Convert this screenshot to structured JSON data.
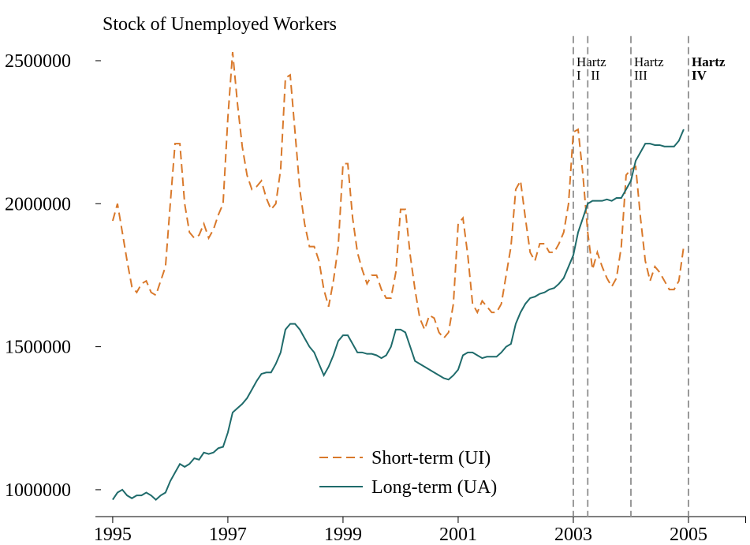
{
  "chart_data": {
    "type": "line",
    "title": "Stock of Unemployed Workers",
    "x": [
      1995,
      1995.083,
      1995.167,
      1995.25,
      1995.333,
      1995.417,
      1995.5,
      1995.583,
      1995.667,
      1995.75,
      1995.833,
      1995.917,
      1996,
      1996.083,
      1996.167,
      1996.25,
      1996.333,
      1996.417,
      1996.5,
      1996.583,
      1996.667,
      1996.75,
      1996.833,
      1996.917,
      1997,
      1997.083,
      1997.167,
      1997.25,
      1997.333,
      1997.417,
      1997.5,
      1997.583,
      1997.667,
      1997.75,
      1997.833,
      1997.917,
      1998,
      1998.083,
      1998.167,
      1998.25,
      1998.333,
      1998.417,
      1998.5,
      1998.583,
      1998.667,
      1998.75,
      1998.833,
      1998.917,
      1999,
      1999.083,
      1999.167,
      1999.25,
      1999.333,
      1999.417,
      1999.5,
      1999.583,
      1999.667,
      1999.75,
      1999.833,
      1999.917,
      2000,
      2000.083,
      2000.167,
      2000.25,
      2000.333,
      2000.417,
      2000.5,
      2000.583,
      2000.667,
      2000.75,
      2000.833,
      2000.917,
      2001,
      2001.083,
      2001.167,
      2001.25,
      2001.333,
      2001.417,
      2001.5,
      2001.583,
      2001.667,
      2001.75,
      2001.833,
      2001.917,
      2002,
      2002.083,
      2002.167,
      2002.25,
      2002.333,
      2002.417,
      2002.5,
      2002.583,
      2002.667,
      2002.75,
      2002.833,
      2002.917,
      2003,
      2003.083,
      2003.167,
      2003.25,
      2003.333,
      2003.417,
      2003.5,
      2003.583,
      2003.667,
      2003.75,
      2003.833,
      2003.917,
      2004,
      2004.083,
      2004.167,
      2004.25,
      2004.333,
      2004.417,
      2004.5,
      2004.583,
      2004.667,
      2004.75,
      2004.833,
      2004.917
    ],
    "series": [
      {
        "name": "Short-term (UI)",
        "color": "#d9792b",
        "dash": true,
        "values": [
          1940000,
          2000000,
          1900000,
          1800000,
          1710000,
          1690000,
          1720000,
          1730000,
          1690000,
          1680000,
          1730000,
          1780000,
          2000000,
          2210000,
          2210000,
          2000000,
          1900000,
          1880000,
          1890000,
          1930000,
          1880000,
          1910000,
          1960000,
          2000000,
          2300000,
          2530000,
          2350000,
          2200000,
          2100000,
          2050000,
          2060000,
          2080000,
          2020000,
          1980000,
          2000000,
          2120000,
          2440000,
          2450000,
          2250000,
          2050000,
          1930000,
          1850000,
          1850000,
          1800000,
          1700000,
          1640000,
          1730000,
          1850000,
          2140000,
          2140000,
          1950000,
          1830000,
          1770000,
          1720000,
          1750000,
          1750000,
          1700000,
          1670000,
          1670000,
          1760000,
          1980000,
          1980000,
          1820000,
          1700000,
          1600000,
          1560000,
          1610000,
          1600000,
          1550000,
          1530000,
          1550000,
          1650000,
          1930000,
          1950000,
          1820000,
          1650000,
          1620000,
          1660000,
          1640000,
          1620000,
          1620000,
          1650000,
          1750000,
          1850000,
          2050000,
          2080000,
          1950000,
          1830000,
          1800000,
          1860000,
          1860000,
          1830000,
          1830000,
          1860000,
          1900000,
          2000000,
          2250000,
          2260000,
          2100000,
          1900000,
          1770000,
          1830000,
          1780000,
          1740000,
          1710000,
          1740000,
          1850000,
          2100000,
          2120000,
          2130000,
          1950000,
          1800000,
          1730000,
          1780000,
          1760000,
          1730000,
          1700000,
          1700000,
          1730000,
          1850000
        ]
      },
      {
        "name": "Long-term (UA)",
        "color": "#1f6b6b",
        "dash": false,
        "values": [
          965000,
          990000,
          1000000,
          980000,
          970000,
          980000,
          980000,
          990000,
          980000,
          965000,
          980000,
          990000,
          1030000,
          1060000,
          1090000,
          1080000,
          1090000,
          1110000,
          1105000,
          1130000,
          1125000,
          1130000,
          1145000,
          1150000,
          1200000,
          1270000,
          1285000,
          1300000,
          1320000,
          1350000,
          1380000,
          1405000,
          1410000,
          1410000,
          1440000,
          1480000,
          1560000,
          1580000,
          1580000,
          1560000,
          1530000,
          1500000,
          1480000,
          1440000,
          1400000,
          1430000,
          1470000,
          1520000,
          1540000,
          1540000,
          1510000,
          1480000,
          1480000,
          1475000,
          1475000,
          1470000,
          1460000,
          1470000,
          1500000,
          1560000,
          1560000,
          1550000,
          1500000,
          1450000,
          1440000,
          1430000,
          1420000,
          1410000,
          1400000,
          1390000,
          1385000,
          1400000,
          1420000,
          1470000,
          1480000,
          1480000,
          1470000,
          1460000,
          1465000,
          1465000,
          1465000,
          1480000,
          1500000,
          1510000,
          1580000,
          1620000,
          1650000,
          1670000,
          1675000,
          1685000,
          1690000,
          1700000,
          1705000,
          1720000,
          1740000,
          1780000,
          1820000,
          1900000,
          1950000,
          2000000,
          2010000,
          2010000,
          2010000,
          2015000,
          2010000,
          2020000,
          2020000,
          2050000,
          2080000,
          2150000,
          2180000,
          2210000,
          2210000,
          2205000,
          2205000,
          2200000,
          2200000,
          2200000,
          2220000,
          2260000
        ]
      }
    ],
    "xlim": [
      1994.7,
      2006
    ],
    "xticks": [
      1995,
      1997,
      1999,
      2001,
      2003,
      2005
    ],
    "ylim": [
      906000,
      2600000
    ],
    "yticks": [
      1000000,
      1500000,
      2000000,
      2500000
    ],
    "legend": "lower center",
    "vlines": [
      {
        "x": 2003,
        "top": "Hartz",
        "label": "I",
        "color": "#000000"
      },
      {
        "x": 2003.25,
        "label": "II",
        "color": "#000000"
      },
      {
        "x": 2004,
        "top": "Hartz",
        "label": "III",
        "color": "#000000"
      },
      {
        "x": 2005,
        "top": "Hartz",
        "label": "IV",
        "color": "#1f6b6b",
        "bold": true
      }
    ]
  }
}
